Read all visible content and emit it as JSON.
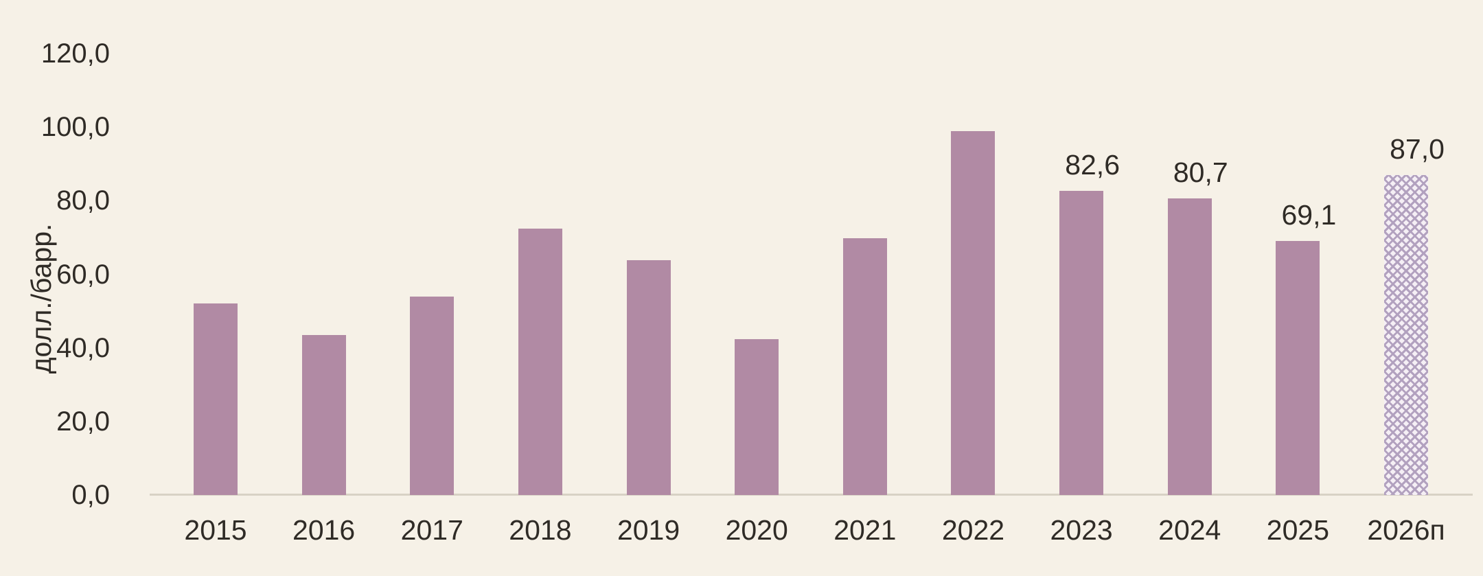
{
  "chart_data": {
    "type": "bar",
    "title": "",
    "xlabel": "",
    "ylabel": "долл./барр.",
    "categories": [
      "2015",
      "2016",
      "2017",
      "2018",
      "2019",
      "2020",
      "2021",
      "2022",
      "2023",
      "2024",
      "2025",
      "2026п"
    ],
    "values": [
      52.0,
      43.5,
      54.0,
      72.5,
      63.8,
      42.3,
      69.8,
      99.0,
      82.6,
      80.7,
      69.1,
      87.0
    ],
    "data_labels": [
      null,
      null,
      null,
      null,
      null,
      null,
      null,
      null,
      "82,6",
      "80,7",
      "69,1",
      "87,0"
    ],
    "forecast_index": 11,
    "ylim": [
      0,
      120
    ],
    "y_ticks": [
      {
        "value": 0,
        "label": "0,0"
      },
      {
        "value": 20,
        "label": "20,0"
      },
      {
        "value": 40,
        "label": "40,0"
      },
      {
        "value": 60,
        "label": "60,0"
      },
      {
        "value": 80,
        "label": "80,0"
      },
      {
        "value": 100,
        "label": "100,0"
      },
      {
        "value": 120,
        "label": "120,0"
      }
    ],
    "grid": false,
    "legend": false
  },
  "colors": {
    "background": "#f6f1e7",
    "bar": "#b18aa4",
    "forecast_hatch_line": "#b2a1bf",
    "forecast_hatch_bg": "#f5eff5",
    "axis_line": "#d8d2c5",
    "text": "#2f2b26"
  }
}
